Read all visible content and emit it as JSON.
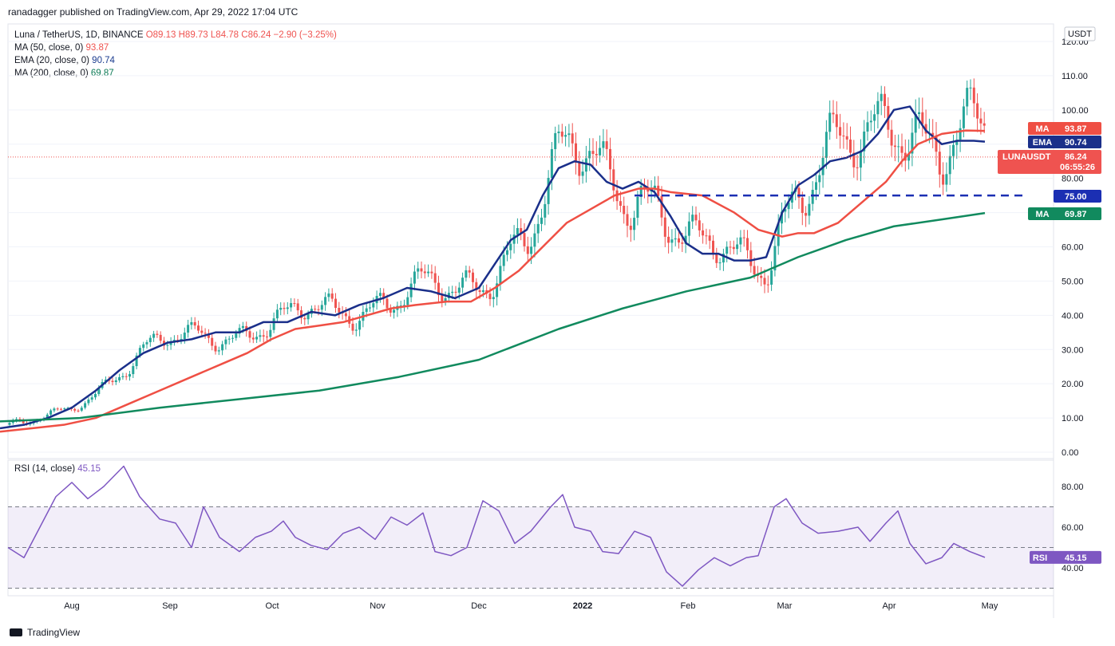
{
  "header": {
    "text": "ranadagger published on TradingView.com, Apr 29, 2022 17:04 UTC"
  },
  "legend": {
    "symbol": "Luna / TetherUS, 1D, BINANCE",
    "ohlc": "O89.13  H89.73  L84.78  C86.24  −2.90 (−3.25%)",
    "ma50_label": "MA (50, close, 0)",
    "ma50_value": "93.87",
    "ema20_label": "EMA (20, close, 0)",
    "ema20_value": "90.74",
    "ma200_label": "MA (200, close, 0)",
    "ma200_value": "69.87"
  },
  "rsi_legend": {
    "label": "RSI (14, close)",
    "value": "45.15"
  },
  "footer": {
    "brand": "TradingView"
  },
  "colors": {
    "ma50": "#ef4f44",
    "ema20": "#1a2f8a",
    "ma200": "#118a5e",
    "up": "#26a69a",
    "down": "#ef5350",
    "rsi": "#7e57c2"
  },
  "chart_data": {
    "type": "candlestick",
    "currency_label": "USDT",
    "y_ticks": [
      "120.00",
      "110.00",
      "100.00",
      "90.00",
      "80.00",
      "70.00",
      "60.00",
      "50.00",
      "40.00",
      "30.00",
      "20.00",
      "10.00",
      "0.00"
    ],
    "ylim": [
      0,
      120
    ],
    "x_ticks": [
      "Aug",
      "Sep",
      "Oct",
      "Nov",
      "Dec",
      "2022",
      "Feb",
      "Mar",
      "Apr",
      "May"
    ],
    "price_badges": [
      {
        "name": "MA",
        "value": "93.87",
        "color": "#ef4f44"
      },
      {
        "name": "EMA",
        "value": "90.74",
        "color": "#1a2f8a"
      },
      {
        "name": "LUNAUSDT",
        "value": "86.24",
        "timer": "06:55:26",
        "color": "#ef5350"
      },
      {
        "name": "",
        "value": "75.00",
        "color": "#1b2fb3"
      },
      {
        "name": "MA",
        "value": "69.87",
        "color": "#118a5e"
      }
    ],
    "horizontal_line": {
      "value": 75.0,
      "style": "dashed",
      "color": "#1b2fb3",
      "from_date": "Jan 16",
      "to_date": "Apr 29"
    },
    "last_price": 86.24,
    "series": [
      {
        "name": "EMA 20",
        "values": [
          [
            0,
            7
          ],
          [
            30,
            8
          ],
          [
            60,
            10
          ],
          [
            90,
            13
          ],
          [
            120,
            18
          ],
          [
            150,
            24
          ],
          [
            180,
            29
          ],
          [
            210,
            32
          ],
          [
            240,
            33
          ],
          [
            270,
            35
          ],
          [
            300,
            35
          ],
          [
            330,
            38
          ],
          [
            360,
            38
          ],
          [
            390,
            41
          ],
          [
            420,
            40
          ],
          [
            450,
            43
          ],
          [
            480,
            45
          ],
          [
            510,
            48
          ],
          [
            540,
            47
          ],
          [
            570,
            45
          ],
          [
            600,
            48
          ],
          [
            620,
            55
          ],
          [
            640,
            62
          ],
          [
            660,
            65
          ],
          [
            680,
            75
          ],
          [
            700,
            83
          ],
          [
            720,
            85
          ],
          [
            740,
            84
          ],
          [
            760,
            79
          ],
          [
            780,
            77
          ],
          [
            800,
            79
          ],
          [
            820,
            76
          ],
          [
            840,
            69
          ],
          [
            860,
            61
          ],
          [
            880,
            58
          ],
          [
            900,
            58
          ],
          [
            920,
            56
          ],
          [
            940,
            56
          ],
          [
            960,
            57
          ],
          [
            980,
            70
          ],
          [
            1000,
            78
          ],
          [
            1020,
            81
          ],
          [
            1040,
            85
          ],
          [
            1060,
            86
          ],
          [
            1080,
            88
          ],
          [
            1100,
            93
          ],
          [
            1120,
            100
          ],
          [
            1140,
            101
          ],
          [
            1160,
            94
          ],
          [
            1180,
            90
          ],
          [
            1200,
            91
          ],
          [
            1220,
            91
          ],
          [
            1234,
            90.74
          ]
        ]
      },
      {
        "name": "MA 50",
        "values": [
          [
            0,
            6
          ],
          [
            40,
            7
          ],
          [
            80,
            8
          ],
          [
            120,
            10
          ],
          [
            160,
            14
          ],
          [
            200,
            18
          ],
          [
            240,
            22
          ],
          [
            280,
            26
          ],
          [
            310,
            29
          ],
          [
            340,
            33
          ],
          [
            370,
            36
          ],
          [
            400,
            37
          ],
          [
            430,
            38
          ],
          [
            460,
            40
          ],
          [
            490,
            42
          ],
          [
            520,
            43
          ],
          [
            560,
            44
          ],
          [
            590,
            44
          ],
          [
            620,
            48
          ],
          [
            650,
            53
          ],
          [
            680,
            60
          ],
          [
            710,
            67
          ],
          [
            740,
            71
          ],
          [
            770,
            75
          ],
          [
            800,
            77
          ],
          [
            820,
            77
          ],
          [
            840,
            76
          ],
          [
            880,
            75
          ],
          [
            920,
            70
          ],
          [
            950,
            65
          ],
          [
            980,
            63
          ],
          [
            1000,
            64
          ],
          [
            1020,
            64
          ],
          [
            1050,
            67
          ],
          [
            1080,
            73
          ],
          [
            1110,
            79
          ],
          [
            1130,
            85
          ],
          [
            1150,
            90
          ],
          [
            1180,
            93
          ],
          [
            1210,
            94
          ],
          [
            1234,
            93.87
          ]
        ]
      },
      {
        "name": "MA 200",
        "values": [
          [
            0,
            9
          ],
          [
            100,
            10
          ],
          [
            200,
            13
          ],
          [
            300,
            15.5
          ],
          [
            400,
            18
          ],
          [
            500,
            22
          ],
          [
            600,
            27
          ],
          [
            700,
            36
          ],
          [
            780,
            42
          ],
          [
            860,
            47
          ],
          [
            940,
            51
          ],
          [
            1000,
            57
          ],
          [
            1060,
            62
          ],
          [
            1120,
            66
          ],
          [
            1180,
            68
          ],
          [
            1234,
            69.87
          ]
        ]
      },
      {
        "name": "RSI 14",
        "values": [
          [
            10,
            50
          ],
          [
            30,
            45
          ],
          [
            50,
            60
          ],
          [
            70,
            75
          ],
          [
            90,
            82
          ],
          [
            110,
            74
          ],
          [
            130,
            80
          ],
          [
            155,
            90
          ],
          [
            175,
            75
          ],
          [
            200,
            64
          ],
          [
            220,
            62
          ],
          [
            240,
            50
          ],
          [
            255,
            70
          ],
          [
            275,
            55
          ],
          [
            300,
            48
          ],
          [
            320,
            55
          ],
          [
            340,
            58
          ],
          [
            355,
            63
          ],
          [
            370,
            55
          ],
          [
            390,
            51
          ],
          [
            410,
            49
          ],
          [
            430,
            57
          ],
          [
            450,
            60
          ],
          [
            470,
            54
          ],
          [
            490,
            65
          ],
          [
            510,
            61
          ],
          [
            530,
            67
          ],
          [
            545,
            48
          ],
          [
            565,
            46
          ],
          [
            585,
            50
          ],
          [
            605,
            73
          ],
          [
            625,
            68
          ],
          [
            645,
            52
          ],
          [
            665,
            58
          ],
          [
            690,
            70
          ],
          [
            705,
            76
          ],
          [
            720,
            60
          ],
          [
            740,
            58
          ],
          [
            755,
            48
          ],
          [
            775,
            47
          ],
          [
            795,
            58
          ],
          [
            815,
            55
          ],
          [
            835,
            38
          ],
          [
            855,
            31
          ],
          [
            875,
            39
          ],
          [
            895,
            45
          ],
          [
            915,
            41
          ],
          [
            935,
            45
          ],
          [
            950,
            46
          ],
          [
            970,
            70
          ],
          [
            985,
            74
          ],
          [
            1005,
            62
          ],
          [
            1025,
            57
          ],
          [
            1050,
            58
          ],
          [
            1075,
            60
          ],
          [
            1090,
            53
          ],
          [
            1110,
            62
          ],
          [
            1125,
            68
          ],
          [
            1140,
            52
          ],
          [
            1160,
            42
          ],
          [
            1180,
            45
          ],
          [
            1195,
            52
          ],
          [
            1215,
            48
          ],
          [
            1234,
            45.15
          ]
        ]
      }
    ],
    "rsi": {
      "value": 45.15,
      "band_upper": 70,
      "band_lower": 30,
      "middle": 50,
      "ticks": [
        "80.00",
        "60.00",
        "40.00"
      ]
    }
  }
}
